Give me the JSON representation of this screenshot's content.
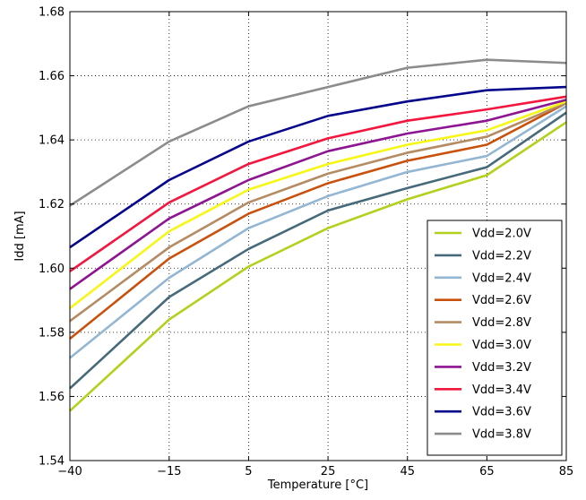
{
  "chart_data": {
    "type": "line",
    "title": "",
    "xlabel": "Temperature [°C]",
    "ylabel": "Idd [mA]",
    "x": [
      -40,
      -15,
      5,
      25,
      45,
      65,
      85
    ],
    "x_tick_labels": [
      "−40",
      "−15",
      "5",
      "25",
      "45",
      "65",
      "85"
    ],
    "ylim": [
      1.54,
      1.68
    ],
    "y_ticks": [
      1.54,
      1.56,
      1.58,
      1.6,
      1.62,
      1.64,
      1.66,
      1.68
    ],
    "y_tick_labels": [
      "1.54",
      "1.56",
      "1.58",
      "1.60",
      "1.62",
      "1.64",
      "1.66",
      "1.68"
    ],
    "grid": true,
    "legend_position": "lower-right",
    "series": [
      {
        "name": "Vdd=2.0V",
        "color": "#b5d01c",
        "values": [
          1.5555,
          1.584,
          1.6005,
          1.6125,
          1.6215,
          1.629,
          1.6455
        ]
      },
      {
        "name": "Vdd=2.2V",
        "color": "#476a7a",
        "values": [
          1.5625,
          1.591,
          1.606,
          1.618,
          1.625,
          1.6315,
          1.6485
        ]
      },
      {
        "name": "Vdd=2.4V",
        "color": "#93b6d3",
        "values": [
          1.572,
          1.597,
          1.6125,
          1.6225,
          1.63,
          1.635,
          1.6505
        ]
      },
      {
        "name": "Vdd=2.6V",
        "color": "#c9510c",
        "values": [
          1.578,
          1.603,
          1.617,
          1.6265,
          1.6335,
          1.6385,
          1.6515
        ]
      },
      {
        "name": "Vdd=2.8V",
        "color": "#b48b62",
        "values": [
          1.5835,
          1.6065,
          1.6205,
          1.6295,
          1.636,
          1.641,
          1.6515
        ]
      },
      {
        "name": "Vdd=3.0V",
        "color": "#f7f716",
        "values": [
          1.5875,
          1.6115,
          1.6245,
          1.6325,
          1.6385,
          1.643,
          1.652
        ]
      },
      {
        "name": "Vdd=3.2V",
        "color": "#8e1592",
        "values": [
          1.5935,
          1.6155,
          1.6275,
          1.6365,
          1.642,
          1.646,
          1.6525
        ]
      },
      {
        "name": "Vdd=3.4V",
        "color": "#f3163f",
        "values": [
          1.599,
          1.6205,
          1.6325,
          1.6405,
          1.646,
          1.6495,
          1.6535
        ]
      },
      {
        "name": "Vdd=3.6V",
        "color": "#05058c",
        "values": [
          1.6065,
          1.6275,
          1.6395,
          1.6475,
          1.652,
          1.6555,
          1.6565
        ]
      },
      {
        "name": "Vdd=3.8V",
        "color": "#8c8c8c",
        "values": [
          1.6195,
          1.6395,
          1.6505,
          1.6565,
          1.6625,
          1.665,
          1.664
        ]
      }
    ]
  }
}
